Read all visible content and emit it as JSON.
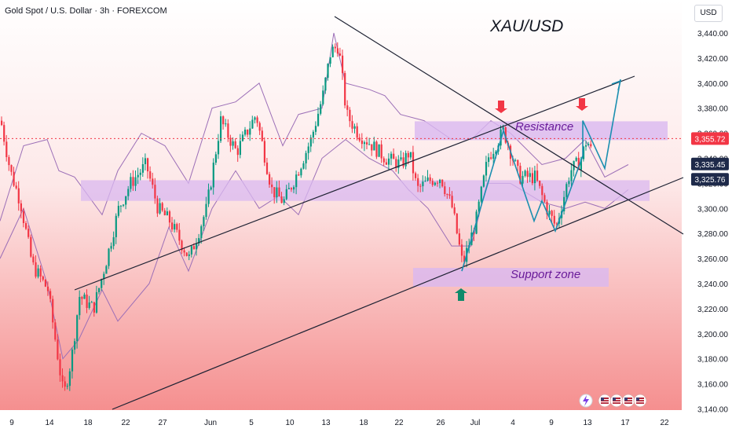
{
  "header": {
    "symbol": "Gold Spot / U.S. Dollar · 3h · FOREXCOM",
    "currency": "USD",
    "pair": "XAU/USD"
  },
  "annotations": {
    "resistance": "Resistance",
    "support": "Support zone"
  },
  "colors": {
    "up": "#089981",
    "down": "#f23645",
    "zone": "#d9b8f0",
    "envelope": "#9c6fb7",
    "trendline": "#1e2233",
    "projection": "#1b8fb0",
    "arrow_down": "#f23645",
    "arrow_up": "#0e8a6a"
  },
  "chart_data": {
    "type": "candlestick",
    "y_ticks": [
      "3,440.00",
      "3,420.00",
      "3,400.00",
      "3,380.00",
      "3,360.00",
      "3,340.00",
      "3,320.00",
      "3,300.00",
      "3,280.00",
      "3,260.00",
      "3,240.00",
      "3,220.00",
      "3,200.00",
      "3,180.00",
      "3,160.00",
      "3,140.00"
    ],
    "ylim": [
      3140,
      3440
    ],
    "x_ticks": [
      "9",
      "14",
      "18",
      "22",
      "27",
      "Jun",
      "5",
      "10",
      "13",
      "18",
      "22",
      "26",
      "Jul",
      "4",
      "9",
      "13",
      "17",
      "22"
    ],
    "price_badges": [
      {
        "value": 3355.72,
        "label": "3,355.72",
        "color": "#f23645"
      },
      {
        "value": 3335.45,
        "label": "3,335.45",
        "color": "#1e2a4a"
      },
      {
        "value": 3325.76,
        "label": "3,325.76",
        "color": "#1e2a4a"
      }
    ],
    "resistance_zone": [
      3357,
      3367
    ],
    "support_zone": [
      3240,
      3250
    ],
    "mid_zone": [
      3306,
      3320
    ],
    "events_icons": 5,
    "projection_path": [
      3250,
      3362,
      3290,
      3306,
      3282,
      3342,
      3370,
      3332,
      3403
    ]
  }
}
